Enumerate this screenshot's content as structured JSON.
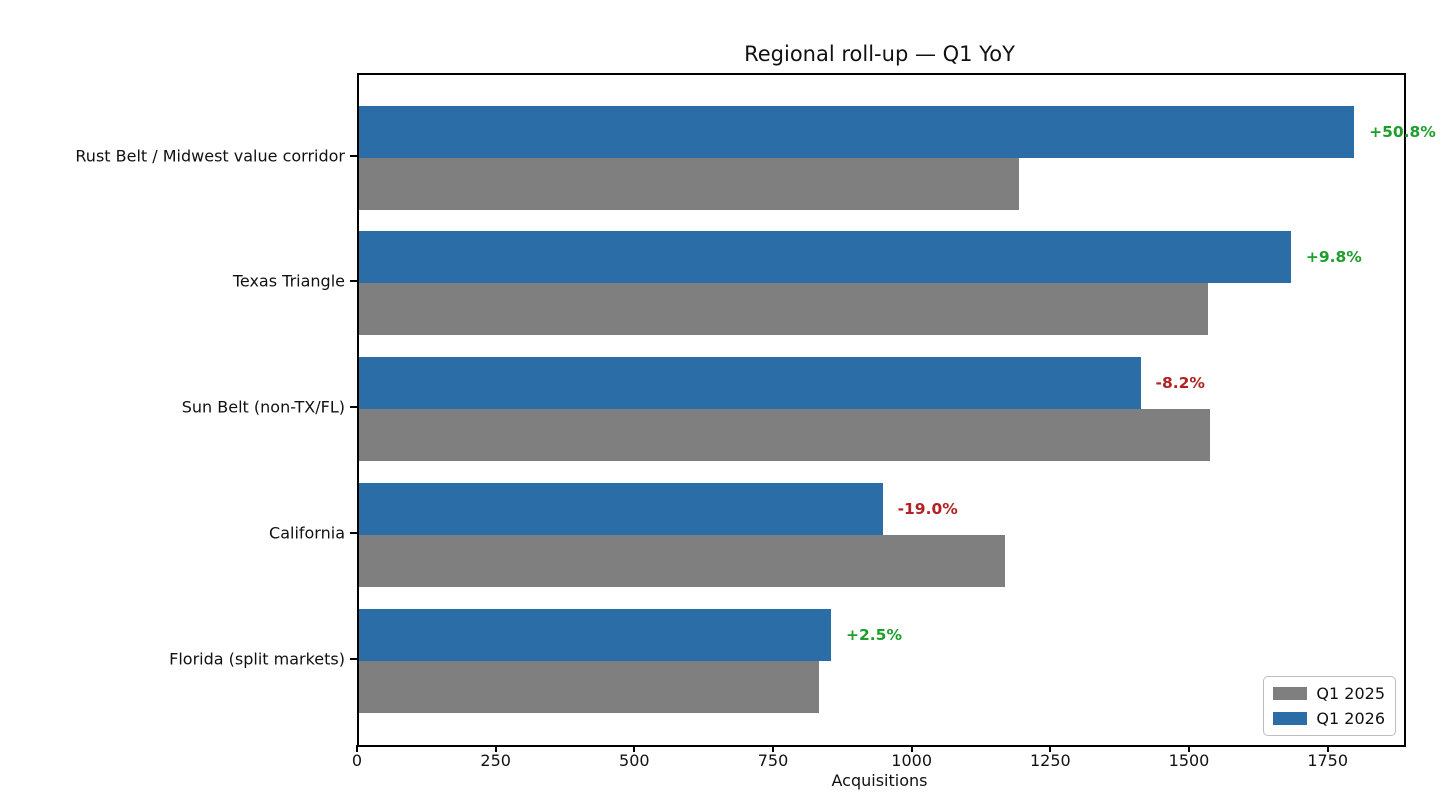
{
  "chart_data": {
    "type": "bar",
    "orientation": "horizontal",
    "title": "Regional roll-up — Q1 YoY",
    "xlabel": "Acquisitions",
    "ylabel": "",
    "categories": [
      "Rust Belt / Midwest value corridor",
      "Texas Triangle",
      "Sun Belt (non-TX/FL)",
      "California",
      "Florida (split markets)"
    ],
    "series": [
      {
        "name": "Q1 2025",
        "color": "#7f7f7f",
        "values": [
          1190,
          1530,
          1535,
          1165,
          830
        ]
      },
      {
        "name": "Q1 2026",
        "color": "#2b6da6",
        "values": [
          1794,
          1680,
          1409,
          944,
          851
        ]
      }
    ],
    "annotations": [
      {
        "label": "+50.8%",
        "color": "#1e9e2c"
      },
      {
        "label": "+9.8%",
        "color": "#1e9e2c"
      },
      {
        "label": "-8.2%",
        "color": "#b22222"
      },
      {
        "label": "-19.0%",
        "color": "#b22222"
      },
      {
        "label": "+2.5%",
        "color": "#1e9e2c"
      }
    ],
    "x_ticks": [
      0,
      250,
      500,
      750,
      1000,
      1250,
      1500,
      1750
    ],
    "xlim": [
      0,
      1884
    ],
    "grid": false,
    "legend": {
      "position": "lower right",
      "entries": [
        "Q1 2025",
        "Q1 2026"
      ]
    },
    "annotation_colors": {
      "positive": "#1e9e2c",
      "negative": "#b22222"
    }
  }
}
